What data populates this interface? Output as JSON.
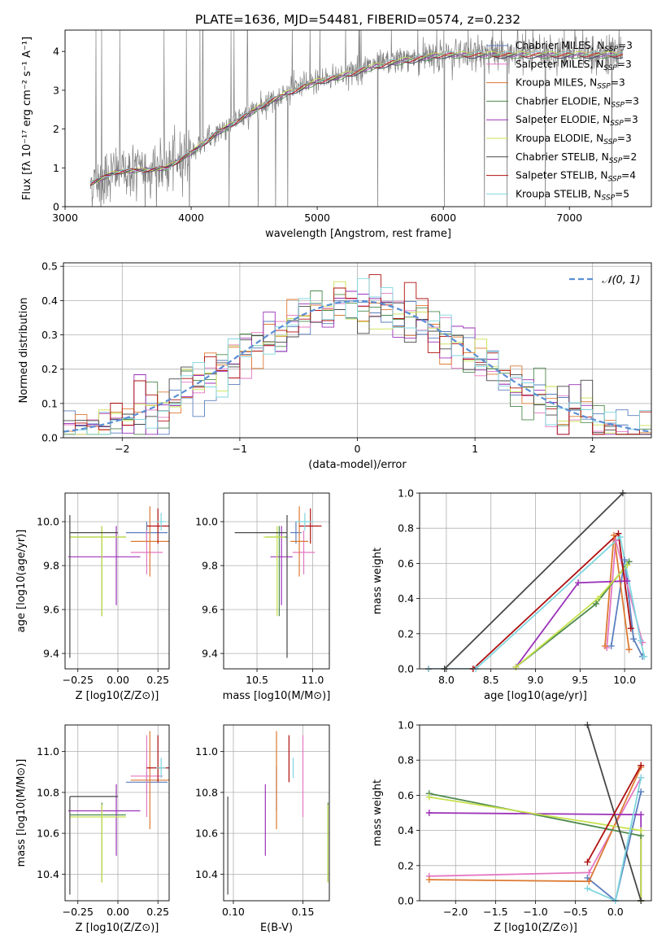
{
  "figure": {
    "title": "PLATE=1636, MJD=54481, FIBERID=0574, z=0.232"
  },
  "palette": {
    "Chabrier MILES": "#5b7fbf",
    "Salpeter MILES": "#e377c2",
    "Kroupa MILES": "#dd7a33",
    "Chabrier ELODIE": "#4d8a4d",
    "Salpeter ELODIE": "#9b32b9",
    "Kroupa ELODIE": "#c7e14d",
    "Chabrier STELIB": "#484848",
    "Salpeter STELIB": "#b01010",
    "Kroupa STELIB": "#7fd6df",
    "spectrum": "#808080",
    "normal": "#5b8fd6",
    "grid": "#b0b0b0"
  },
  "chart_data": [
    {
      "id": "spectrum",
      "type": "line",
      "title": "PLATE=1636, MJD=54481, FIBERID=0574, z=0.232",
      "xlabel": "wavelength [Angstrom, rest frame]",
      "ylabel": "Flux [fλ 10⁻¹⁷ erg cm⁻² s⁻¹ A⁻¹]",
      "xlim": [
        3000,
        7650
      ],
      "ylim": [
        0,
        4.55
      ],
      "xticks": [
        3000,
        4000,
        5000,
        6000,
        7000
      ],
      "yticks": [
        0,
        1,
        2,
        3,
        4
      ],
      "grid": false,
      "legend_position": "top-right",
      "legend": [
        "Chabrier MILES, N_SSP=3",
        "Salpeter MILES, N_SSP=3",
        "Kroupa MILES, N_SSP=3",
        "Chabrier ELODIE, N_SSP=3",
        "Salpeter ELODIE, N_SSP=3",
        "Kroupa ELODIE, N_SSP=3",
        "Chabrier STELIB, N_SSP=2",
        "Salpeter STELIB, N_SSP=4",
        "Kroupa STELIB, N_SSP=5"
      ],
      "continuum": {
        "x": [
          3200,
          3400,
          3600,
          3800,
          4000,
          4200,
          4400,
          4600,
          4800,
          5000,
          5200,
          5400,
          5600,
          5800,
          6000,
          6200,
          6400,
          6600,
          6800,
          7000,
          7200,
          7400
        ],
        "y": [
          0.6,
          0.9,
          0.95,
          1.0,
          1.4,
          1.9,
          2.3,
          2.7,
          3.0,
          3.25,
          3.4,
          3.6,
          3.75,
          3.85,
          3.95,
          3.95,
          3.95,
          3.95,
          3.95,
          3.95,
          3.95,
          3.95
        ]
      }
    },
    {
      "id": "residuals",
      "type": "histogram",
      "xlabel": "(data-model)/error",
      "ylabel": "Normed distribution",
      "xlim": [
        -2.5,
        2.5
      ],
      "ylim": [
        0,
        0.51
      ],
      "xticks": [
        -2,
        -1,
        0,
        1,
        2
      ],
      "yticks": [
        0.0,
        0.1,
        0.2,
        0.3,
        0.4,
        0.5
      ],
      "grid": true,
      "legend_position": "top-right",
      "legend": [
        "𝒩(0, 1)"
      ],
      "bin_width": 0.1
    },
    {
      "id": "age-vs-Z",
      "type": "errorbar",
      "xlabel": "Z [log10(Z/Z⊙)]",
      "ylabel": "age  [log10(age/yr)]",
      "xlim": [
        -0.33,
        0.32
      ],
      "ylim": [
        9.33,
        10.13
      ],
      "xticks": [
        -0.25,
        0.0,
        0.25
      ],
      "yticks": [
        9.4,
        9.6,
        9.8,
        10.0
      ],
      "grid": true,
      "points": [
        {
          "model": "Chabrier MILES",
          "x": 0.18,
          "xerr": [
            0.13,
            0.13
          ],
          "y": 9.95,
          "yerr": [
            0.05,
            0.05
          ]
        },
        {
          "model": "Salpeter MILES",
          "x": 0.18,
          "xerr": [
            0.1,
            0.1
          ],
          "y": 9.86,
          "yerr": [
            0.1,
            0.1
          ]
        },
        {
          "model": "Kroupa MILES",
          "x": 0.2,
          "xerr": [
            0.12,
            0.12
          ],
          "y": 9.91,
          "yerr": [
            0.16,
            0.16
          ]
        },
        {
          "model": "Chabrier ELODIE",
          "x": -0.1,
          "xerr": [
            0.2,
            0.15
          ],
          "y": 9.93,
          "yerr": [
            0.36,
            0.05
          ]
        },
        {
          "model": "Salpeter ELODIE",
          "x": -0.01,
          "xerr": [
            0.3,
            0.15
          ],
          "y": 9.84,
          "yerr": [
            0.22,
            0.14
          ]
        },
        {
          "model": "Kroupa ELODIE",
          "x": -0.1,
          "xerr": [
            0.2,
            0.15
          ],
          "y": 9.93,
          "yerr": [
            0.36,
            0.05
          ]
        },
        {
          "model": "Chabrier STELIB",
          "x": -0.3,
          "xerr": [
            0.0,
            0.3
          ],
          "y": 9.95,
          "yerr": [
            0.57,
            0.08
          ]
        },
        {
          "model": "Salpeter STELIB",
          "x": 0.25,
          "xerr": [
            0.07,
            0.07
          ],
          "y": 9.98,
          "yerr": [
            0.08,
            0.08
          ]
        },
        {
          "model": "Kroupa STELIB",
          "x": 0.27,
          "xerr": [
            0.03,
            0.03
          ],
          "y": 10.0,
          "yerr": [
            0.04,
            0.04
          ]
        }
      ]
    },
    {
      "id": "age-vs-mass",
      "type": "errorbar",
      "xlabel": "mass [log10(M/M⊙)]",
      "ylabel": "",
      "xlim": [
        10.2,
        11.15
      ],
      "ylim": [
        9.33,
        10.13
      ],
      "xticks": [
        10.5,
        11.0
      ],
      "yticks": [
        9.4,
        9.6,
        9.8,
        10.0
      ],
      "grid": true,
      "points": [
        {
          "model": "Chabrier MILES",
          "x": 10.85,
          "xerr": [
            0.05,
            0.05
          ],
          "y": 9.95,
          "yerr": [
            0.05,
            0.05
          ]
        },
        {
          "model": "Salpeter MILES",
          "x": 10.92,
          "xerr": [
            0.1,
            0.1
          ],
          "y": 9.86,
          "yerr": [
            0.1,
            0.1
          ]
        },
        {
          "model": "Kroupa MILES",
          "x": 10.88,
          "xerr": [
            0.08,
            0.08
          ],
          "y": 9.91,
          "yerr": [
            0.16,
            0.16
          ]
        },
        {
          "model": "Chabrier ELODIE",
          "x": 10.7,
          "xerr": [
            0.12,
            0.07
          ],
          "y": 9.93,
          "yerr": [
            0.36,
            0.05
          ]
        },
        {
          "model": "Salpeter ELODIE",
          "x": 10.72,
          "xerr": [
            0.1,
            0.1
          ],
          "y": 9.84,
          "yerr": [
            0.22,
            0.14
          ]
        },
        {
          "model": "Kroupa ELODIE",
          "x": 10.68,
          "xerr": [
            0.12,
            0.07
          ],
          "y": 9.93,
          "yerr": [
            0.36,
            0.05
          ]
        },
        {
          "model": "Chabrier STELIB",
          "x": 10.77,
          "xerr": [
            0.47,
            0.0
          ],
          "y": 9.95,
          "yerr": [
            0.57,
            0.08
          ]
        },
        {
          "model": "Salpeter STELIB",
          "x": 10.98,
          "xerr": [
            0.1,
            0.1
          ],
          "y": 9.98,
          "yerr": [
            0.08,
            0.08
          ]
        },
        {
          "model": "Kroupa STELIB",
          "x": 10.93,
          "xerr": [
            0.08,
            0.08
          ],
          "y": 10.0,
          "yerr": [
            0.04,
            0.04
          ]
        }
      ]
    },
    {
      "id": "weight-vs-age",
      "type": "line",
      "xlabel": "age  [log10(age/yr)]",
      "ylabel": "mass weight",
      "xlim": [
        7.7,
        10.3
      ],
      "ylim": [
        0,
        1
      ],
      "xticks": [
        8.0,
        8.5,
        9.0,
        9.5,
        10.0
      ],
      "yticks": [
        0.0,
        0.2,
        0.4,
        0.6,
        0.8,
        1.0
      ],
      "grid": true,
      "series": [
        {
          "model": "Chabrier MILES",
          "x": [
            9.85,
            10.0,
            10.1,
            10.2
          ],
          "y": [
            0.13,
            0.62,
            0.17,
            0.07
          ]
        },
        {
          "model": "Salpeter MILES",
          "x": [
            9.8,
            9.9,
            10.2
          ],
          "y": [
            0.12,
            0.73,
            0.15
          ]
        },
        {
          "model": "Kroupa MILES",
          "x": [
            9.78,
            9.88,
            10.05
          ],
          "y": [
            0.13,
            0.76,
            0.11
          ]
        },
        {
          "model": "Chabrier ELODIE",
          "x": [
            8.78,
            9.68,
            10.05
          ],
          "y": [
            0.01,
            0.37,
            0.61
          ]
        },
        {
          "model": "Salpeter ELODIE",
          "x": [
            8.78,
            9.48,
            10.03
          ],
          "y": [
            0.01,
            0.49,
            0.5
          ]
        },
        {
          "model": "Kroupa ELODIE",
          "x": [
            8.78,
            9.7,
            10.03
          ],
          "y": [
            0.01,
            0.4,
            0.59
          ]
        },
        {
          "model": "Chabrier STELIB",
          "x": [
            7.98,
            9.98
          ],
          "y": [
            0.0,
            1.0
          ]
        },
        {
          "model": "Salpeter STELIB",
          "x": [
            7.8,
            8.3,
            9.93,
            10.07
          ],
          "y": [
            0.0,
            0.0,
            0.77,
            0.23
          ]
        },
        {
          "model": "Kroupa STELIB",
          "x": [
            7.8,
            8.33,
            9.95,
            10.18,
            10.22
          ],
          "y": [
            0.0,
            0.0,
            0.75,
            0.16,
            0.07
          ]
        }
      ]
    },
    {
      "id": "mass-vs-Z",
      "type": "errorbar",
      "xlabel": "Z [log10(Z/Z⊙)]",
      "ylabel": "mass [log10(M/M⊙)]",
      "xlim": [
        -0.33,
        0.32
      ],
      "ylim": [
        10.27,
        11.13
      ],
      "xticks": [
        -0.25,
        0.0,
        0.25
      ],
      "yticks": [
        10.4,
        10.6,
        10.8,
        11.0
      ],
      "grid": true,
      "points": [
        {
          "model": "Chabrier MILES",
          "x": 0.18,
          "xerr": [
            0.13,
            0.13
          ],
          "y": 10.85,
          "yerr": [
            0.05,
            0.05
          ]
        },
        {
          "model": "Salpeter MILES",
          "x": 0.18,
          "xerr": [
            0.1,
            0.1
          ],
          "y": 10.88,
          "yerr": [
            0.2,
            0.2
          ]
        },
        {
          "model": "Kroupa MILES",
          "x": 0.2,
          "xerr": [
            0.12,
            0.12
          ],
          "y": 10.86,
          "yerr": [
            0.24,
            0.24
          ]
        },
        {
          "model": "Chabrier ELODIE",
          "x": -0.1,
          "xerr": [
            0.2,
            0.15
          ],
          "y": 10.69,
          "yerr": [
            0.33,
            0.06
          ]
        },
        {
          "model": "Salpeter ELODIE",
          "x": -0.01,
          "xerr": [
            0.3,
            0.15
          ],
          "y": 10.71,
          "yerr": [
            0.22,
            0.13
          ]
        },
        {
          "model": "Kroupa ELODIE",
          "x": -0.1,
          "xerr": [
            0.2,
            0.15
          ],
          "y": 10.68,
          "yerr": [
            0.32,
            0.06
          ]
        },
        {
          "model": "Chabrier STELIB",
          "x": -0.3,
          "xerr": [
            0.0,
            0.3
          ],
          "y": 10.78,
          "yerr": [
            0.48,
            0.0
          ]
        },
        {
          "model": "Salpeter STELIB",
          "x": 0.25,
          "xerr": [
            0.07,
            0.07
          ],
          "y": 10.92,
          "yerr": [
            0.07,
            0.16
          ]
        },
        {
          "model": "Kroupa STELIB",
          "x": 0.27,
          "xerr": [
            0.03,
            0.03
          ],
          "y": 10.92,
          "yerr": [
            0.05,
            0.05
          ]
        }
      ]
    },
    {
      "id": "mass-vs-EBV",
      "type": "errorbar",
      "xlabel": "E(B-V)",
      "ylabel": "",
      "xlim": [
        0.093,
        0.169
      ],
      "ylim": [
        10.27,
        11.13
      ],
      "xticks": [
        0.1,
        0.15
      ],
      "yticks": [
        10.4,
        10.6,
        10.8,
        11.0
      ],
      "grid": true,
      "points": [
        {
          "model": "Chabrier MILES",
          "x": 0.131,
          "y": 10.82,
          "yerr": [
            0.11,
            0.11
          ]
        },
        {
          "model": "Salpeter MILES",
          "x": 0.15,
          "y": 10.88,
          "yerr": [
            0.2,
            0.2
          ]
        },
        {
          "model": "Kroupa MILES",
          "x": 0.131,
          "y": 10.86,
          "yerr": [
            0.24,
            0.24
          ]
        },
        {
          "model": "Chabrier ELODIE",
          "x": 0.168,
          "y": 10.69,
          "yerr": [
            0.33,
            0.06
          ]
        },
        {
          "model": "Salpeter ELODIE",
          "x": 0.123,
          "y": 10.71,
          "yerr": [
            0.22,
            0.13
          ]
        },
        {
          "model": "Kroupa ELODIE",
          "x": 0.168,
          "y": 10.68,
          "yerr": [
            0.32,
            0.06
          ]
        },
        {
          "model": "Chabrier STELIB",
          "x": 0.096,
          "y": 10.78,
          "yerr": [
            0.48,
            0.0
          ]
        },
        {
          "model": "Salpeter STELIB",
          "x": 0.14,
          "y": 10.92,
          "yerr": [
            0.07,
            0.16
          ]
        },
        {
          "model": "Kroupa STELIB",
          "x": 0.143,
          "y": 10.92,
          "yerr": [
            0.05,
            0.05
          ]
        }
      ]
    },
    {
      "id": "weight-vs-Z",
      "type": "line",
      "xlabel": "Z [log10(Z/Z⊙)]",
      "ylabel": "mass weight",
      "xlim": [
        -2.45,
        0.45
      ],
      "ylim": [
        0,
        1
      ],
      "xticks": [
        -2.0,
        -1.5,
        -1.0,
        -0.5,
        0.0
      ],
      "yticks": [
        0.0,
        0.2,
        0.4,
        0.6,
        0.8,
        1.0
      ],
      "grid": true,
      "series": [
        {
          "model": "Chabrier MILES",
          "x": [
            -0.35,
            0.0,
            0.32
          ],
          "y": [
            0.13,
            0.0,
            0.62
          ]
        },
        {
          "model": "Salpeter MILES",
          "x": [
            -2.33,
            -0.33,
            0.32
          ],
          "y": [
            0.14,
            0.16,
            0.7
          ]
        },
        {
          "model": "Kroupa MILES",
          "x": [
            -2.33,
            -0.33,
            0.32
          ],
          "y": [
            0.12,
            0.11,
            0.76
          ]
        },
        {
          "model": "Chabrier ELODIE",
          "x": [
            -2.33,
            0.32,
            0.32
          ],
          "y": [
            0.61,
            0.37,
            0.0
          ]
        },
        {
          "model": "Salpeter ELODIE",
          "x": [
            -2.33,
            0.32,
            0.32
          ],
          "y": [
            0.5,
            0.49,
            0.0
          ]
        },
        {
          "model": "Kroupa ELODIE",
          "x": [
            -2.33,
            0.32,
            0.32
          ],
          "y": [
            0.59,
            0.4,
            0.0
          ]
        },
        {
          "model": "Chabrier STELIB",
          "x": [
            -0.35,
            0.32
          ],
          "y": [
            1.0,
            0.0
          ]
        },
        {
          "model": "Salpeter STELIB",
          "x": [
            -0.35,
            0.32
          ],
          "y": [
            0.22,
            0.77
          ]
        },
        {
          "model": "Kroupa STELIB",
          "x": [
            -0.35,
            0.0,
            0.32
          ],
          "y": [
            0.07,
            0.0,
            0.7
          ]
        }
      ]
    }
  ]
}
